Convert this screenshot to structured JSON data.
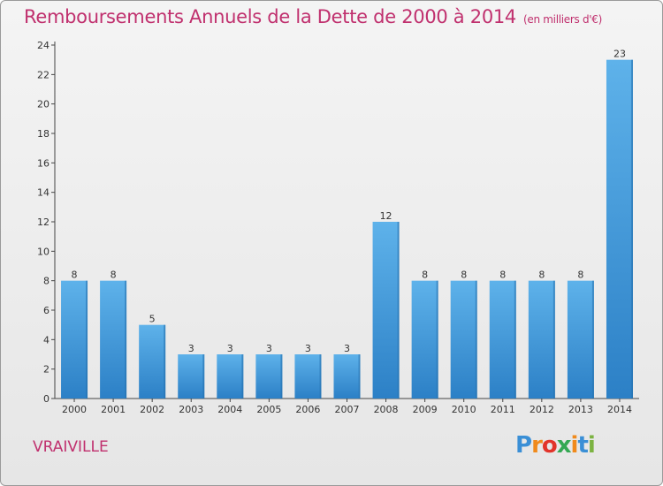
{
  "title": "Remboursements Annuels de la Dette de 2000 à 2014",
  "unit_note": "(en milliers d'€)",
  "town": "VRAIVILLE",
  "logo_text": [
    "P",
    "r",
    "o",
    "x",
    "i",
    "t",
    "i"
  ],
  "colors": {
    "title": "#c0306e",
    "bar_light": "#5aaee8",
    "bar_dark": "#2f86cc",
    "background": "#eeeeee"
  },
  "chart_data": {
    "type": "bar",
    "categories": [
      "2000",
      "2001",
      "2002",
      "2003",
      "2004",
      "2005",
      "2006",
      "2007",
      "2008",
      "2009",
      "2010",
      "2011",
      "2012",
      "2013",
      "2014"
    ],
    "values": [
      8,
      8,
      5,
      3,
      3,
      3,
      3,
      3,
      12,
      8,
      8,
      8,
      8,
      8,
      23
    ],
    "yticks": [
      0,
      2,
      4,
      6,
      8,
      10,
      12,
      14,
      16,
      18,
      20,
      22,
      24
    ],
    "ylim": [
      0,
      24
    ],
    "grid": false
  }
}
